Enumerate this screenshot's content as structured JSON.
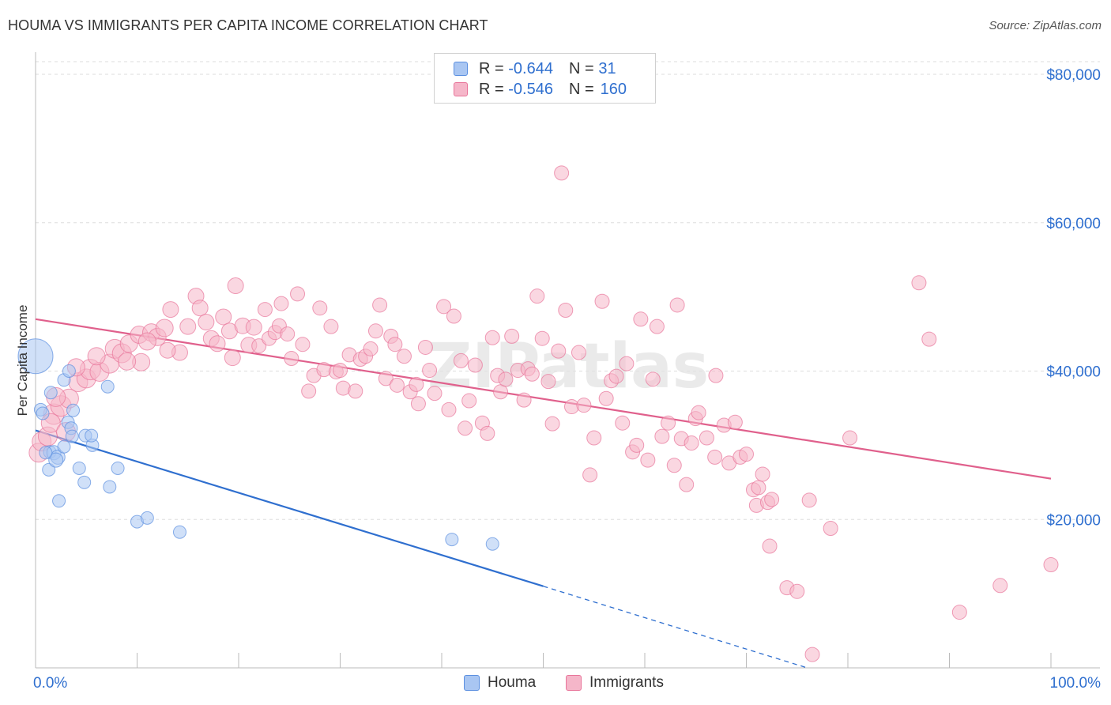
{
  "title": "HOUMA VS IMMIGRANTS PER CAPITA INCOME CORRELATION CHART",
  "source": "Source: ZipAtlas.com",
  "watermark": "ZIPatlas",
  "legend": {
    "rows": [
      {
        "r_label": "R =",
        "r_value": "-0.644",
        "n_label": "N =",
        "n_value": "31"
      },
      {
        "r_label": "R =",
        "r_value": "-0.546",
        "n_label": "N =",
        "n_value": "160"
      }
    ]
  },
  "chart_data": {
    "type": "scatter",
    "title": "HOUMA VS IMMIGRANTS PER CAPITA INCOME CORRELATION CHART",
    "xlabel": "",
    "ylabel": "Per Capita Income",
    "xlim": [
      0,
      100
    ],
    "ylim": [
      0,
      80000
    ],
    "x_tick_labels": [
      "0.0%",
      "100.0%"
    ],
    "y_ticks": [
      20000,
      40000,
      60000,
      80000
    ],
    "y_tick_labels": [
      "$20,000",
      "$40,000",
      "$60,000",
      "$80,000"
    ],
    "grid": true,
    "legend_position": "top-center",
    "colors": {
      "houma": "#5b8fe0",
      "houma_fill": "#a9c6f2",
      "immigrants": "#e8759a",
      "immigrants_fill": "#f5b6c9",
      "value_text": "#2f6fcf"
    },
    "series": [
      {
        "name": "Houma",
        "color": "#5b8fe0",
        "trend": {
          "x": [
            0,
            50
          ],
          "y": [
            32000,
            11000
          ],
          "dashed_to": [
            76,
            0
          ]
        },
        "points": [
          [
            0,
            42000,
            22
          ],
          [
            0.5,
            34800,
            8
          ],
          [
            0.7,
            34300,
            8
          ],
          [
            1.4,
            29100,
            8
          ],
          [
            1.3,
            26700,
            8
          ],
          [
            1.5,
            37100,
            8
          ],
          [
            1.8,
            29000,
            9
          ],
          [
            2.2,
            28400,
            9
          ],
          [
            2.0,
            28000,
            9
          ],
          [
            2.3,
            22500,
            8
          ],
          [
            2.8,
            38800,
            8
          ],
          [
            2.8,
            29800,
            8
          ],
          [
            3.2,
            33100,
            8
          ],
          [
            3.3,
            40000,
            8
          ],
          [
            3.5,
            32300,
            8
          ],
          [
            3.7,
            34700,
            8
          ],
          [
            3.6,
            31200,
            8
          ],
          [
            4.3,
            26900,
            8
          ],
          [
            4.8,
            25000,
            8
          ],
          [
            4.9,
            31300,
            8
          ],
          [
            5.6,
            30000,
            8
          ],
          [
            5.5,
            31300,
            8
          ],
          [
            7.3,
            24400,
            8
          ],
          [
            8.1,
            26900,
            8
          ],
          [
            7.1,
            37900,
            8
          ],
          [
            10.0,
            19700,
            8
          ],
          [
            11.0,
            20200,
            8
          ],
          [
            14.2,
            18300,
            8
          ],
          [
            41.0,
            17300,
            8
          ],
          [
            45.0,
            16700,
            8
          ],
          [
            1.0,
            29000,
            8
          ]
        ]
      },
      {
        "name": "Immigrants",
        "color": "#e8759a",
        "trend": {
          "x": [
            0,
            100
          ],
          "y": [
            47000,
            25500
          ]
        },
        "points": [
          [
            0.3,
            29000,
            12
          ],
          [
            0.6,
            30500,
            12
          ],
          [
            1.2,
            31200,
            12
          ],
          [
            1.8,
            34200,
            13
          ],
          [
            2.5,
            35300,
            13
          ],
          [
            3.3,
            36300,
            12
          ],
          [
            4.2,
            38500,
            12
          ],
          [
            5.0,
            39000,
            12
          ],
          [
            5.4,
            40200,
            13
          ],
          [
            6.3,
            39900,
            12
          ],
          [
            7.3,
            41000,
            12
          ],
          [
            7.8,
            43000,
            12
          ],
          [
            8.5,
            42400,
            12
          ],
          [
            9.2,
            43700,
            11
          ],
          [
            10.2,
            44900,
            11
          ],
          [
            10.4,
            41200,
            11
          ],
          [
            11.4,
            45200,
            11
          ],
          [
            12.0,
            44600,
            11
          ],
          [
            12.7,
            45800,
            11
          ],
          [
            13.3,
            48300,
            10
          ],
          [
            14.2,
            42500,
            10
          ],
          [
            15.0,
            46000,
            10
          ],
          [
            15.8,
            50100,
            10
          ],
          [
            16.2,
            48500,
            10
          ],
          [
            16.8,
            46600,
            10
          ],
          [
            17.3,
            44400,
            10
          ],
          [
            17.9,
            43700,
            10
          ],
          [
            18.5,
            47300,
            10
          ],
          [
            19.1,
            45400,
            10
          ],
          [
            19.4,
            41800,
            10
          ],
          [
            19.7,
            51500,
            10
          ],
          [
            20.4,
            46100,
            10
          ],
          [
            21.0,
            43500,
            10
          ],
          [
            21.5,
            45900,
            10
          ],
          [
            22.0,
            43400,
            9
          ],
          [
            22.6,
            48300,
            9
          ],
          [
            23.0,
            44400,
            9
          ],
          [
            23.6,
            45200,
            9
          ],
          [
            24.0,
            46100,
            9
          ],
          [
            24.2,
            49100,
            9
          ],
          [
            24.8,
            45000,
            9
          ],
          [
            25.2,
            41700,
            9
          ],
          [
            25.8,
            50400,
            9
          ],
          [
            26.3,
            43600,
            9
          ],
          [
            26.9,
            37300,
            9
          ],
          [
            27.4,
            39400,
            9
          ],
          [
            28.0,
            48500,
            9
          ],
          [
            28.4,
            40200,
            9
          ],
          [
            29.1,
            46000,
            9
          ],
          [
            29.6,
            39900,
            9
          ],
          [
            30.0,
            40100,
            9
          ],
          [
            30.3,
            37700,
            9
          ],
          [
            30.9,
            42200,
            9
          ],
          [
            31.5,
            37300,
            9
          ],
          [
            32.0,
            41600,
            9
          ],
          [
            32.5,
            42000,
            9
          ],
          [
            33.0,
            43000,
            9
          ],
          [
            33.5,
            45400,
            9
          ],
          [
            33.9,
            48900,
            9
          ],
          [
            34.5,
            39000,
            9
          ],
          [
            35.0,
            44700,
            9
          ],
          [
            35.4,
            43600,
            9
          ],
          [
            35.6,
            38100,
            9
          ],
          [
            36.3,
            42000,
            9
          ],
          [
            36.9,
            37200,
            9
          ],
          [
            37.5,
            38200,
            9
          ],
          [
            37.7,
            35600,
            9
          ],
          [
            38.4,
            43200,
            9
          ],
          [
            38.8,
            40100,
            9
          ],
          [
            39.3,
            37000,
            9
          ],
          [
            40.2,
            48700,
            9
          ],
          [
            40.7,
            34800,
            9
          ],
          [
            41.2,
            47400,
            9
          ],
          [
            41.9,
            41400,
            9
          ],
          [
            42.3,
            32300,
            9
          ],
          [
            42.7,
            36000,
            9
          ],
          [
            43.3,
            40800,
            9
          ],
          [
            44.0,
            33000,
            9
          ],
          [
            44.5,
            31600,
            9
          ],
          [
            45.0,
            44500,
            9
          ],
          [
            45.5,
            39400,
            9
          ],
          [
            45.8,
            37200,
            9
          ],
          [
            46.3,
            38900,
            9
          ],
          [
            46.9,
            44700,
            9
          ],
          [
            47.5,
            40100,
            9
          ],
          [
            48.1,
            36100,
            9
          ],
          [
            48.5,
            40300,
            9
          ],
          [
            48.9,
            39600,
            9
          ],
          [
            49.4,
            50100,
            9
          ],
          [
            49.9,
            44400,
            9
          ],
          [
            50.5,
            38600,
            9
          ],
          [
            50.9,
            32900,
            9
          ],
          [
            51.5,
            42700,
            9
          ],
          [
            51.8,
            66700,
            9
          ],
          [
            52.2,
            48200,
            9
          ],
          [
            52.8,
            35200,
            9
          ],
          [
            53.5,
            42500,
            9
          ],
          [
            54.0,
            35400,
            9
          ],
          [
            54.6,
            26000,
            9
          ],
          [
            55.0,
            31000,
            9
          ],
          [
            55.8,
            49400,
            9
          ],
          [
            56.2,
            36300,
            9
          ],
          [
            56.7,
            38700,
            9
          ],
          [
            57.2,
            39300,
            9
          ],
          [
            57.8,
            33000,
            9
          ],
          [
            58.2,
            41000,
            9
          ],
          [
            58.8,
            29100,
            9
          ],
          [
            59.2,
            30000,
            9
          ],
          [
            59.6,
            47000,
            9
          ],
          [
            60.3,
            28000,
            9
          ],
          [
            60.8,
            38900,
            9
          ],
          [
            61.2,
            46000,
            9
          ],
          [
            61.7,
            31200,
            9
          ],
          [
            62.3,
            33000,
            9
          ],
          [
            62.9,
            27300,
            9
          ],
          [
            63.2,
            48900,
            9
          ],
          [
            63.6,
            30900,
            9
          ],
          [
            64.1,
            24700,
            9
          ],
          [
            64.6,
            30300,
            9
          ],
          [
            65.0,
            33600,
            9
          ],
          [
            65.3,
            34400,
            9
          ],
          [
            66.1,
            31000,
            9
          ],
          [
            66.9,
            28400,
            9
          ],
          [
            67.0,
            39400,
            9
          ],
          [
            67.8,
            32700,
            9
          ],
          [
            68.3,
            27600,
            9
          ],
          [
            68.9,
            33100,
            9
          ],
          [
            69.4,
            28400,
            9
          ],
          [
            70.0,
            28800,
            9
          ],
          [
            70.7,
            24000,
            9
          ],
          [
            71.2,
            24300,
            9
          ],
          [
            71.0,
            21900,
            9
          ],
          [
            71.6,
            26100,
            9
          ],
          [
            72.1,
            22300,
            9
          ],
          [
            72.5,
            22700,
            9
          ],
          [
            72.3,
            16400,
            9
          ],
          [
            74.0,
            10800,
            9
          ],
          [
            75.0,
            10300,
            9
          ],
          [
            76.2,
            22600,
            9
          ],
          [
            78.3,
            18800,
            9
          ],
          [
            80.2,
            31000,
            9
          ],
          [
            87.0,
            51900,
            9
          ],
          [
            88.0,
            44300,
            9
          ],
          [
            91.0,
            7500,
            9
          ],
          [
            95.0,
            11100,
            9
          ],
          [
            100.0,
            13900,
            9
          ],
          [
            76.5,
            1800,
            9
          ],
          [
            1.5,
            33000,
            12
          ],
          [
            2.0,
            36500,
            12
          ],
          [
            4.0,
            40500,
            11
          ],
          [
            6.0,
            42000,
            11
          ],
          [
            3.0,
            31800,
            12
          ],
          [
            9.0,
            41300,
            11
          ],
          [
            11.0,
            44000,
            11
          ],
          [
            13.0,
            42800,
            10
          ]
        ]
      }
    ]
  },
  "bottom_legend": [
    "Houma",
    "Immigrants"
  ]
}
